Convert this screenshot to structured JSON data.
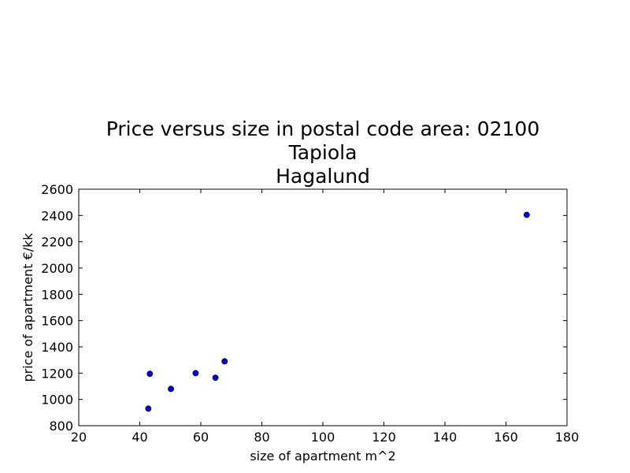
{
  "chart_data": {
    "type": "scatter",
    "title_lines": [
      "Price versus size in postal code area: 02100",
      "Tapiola",
      "Hagalund"
    ],
    "xlabel": "size of apartment m^2",
    "ylabel": "price of apartment €/kk",
    "xlim": [
      20,
      180
    ],
    "ylim": [
      800,
      2600
    ],
    "xticks": [
      20,
      40,
      60,
      80,
      100,
      120,
      140,
      160,
      180
    ],
    "yticks": [
      800,
      1000,
      1200,
      1400,
      1600,
      1800,
      2000,
      2200,
      2400,
      2600
    ],
    "grid": false,
    "marker_color": "#0000ff",
    "points": [
      {
        "x": 42.8,
        "y": 930
      },
      {
        "x": 43.3,
        "y": 1195
      },
      {
        "x": 50.2,
        "y": 1080
      },
      {
        "x": 58.3,
        "y": 1200
      },
      {
        "x": 64.8,
        "y": 1165
      },
      {
        "x": 67.8,
        "y": 1290
      },
      {
        "x": 166.8,
        "y": 2405
      }
    ]
  }
}
